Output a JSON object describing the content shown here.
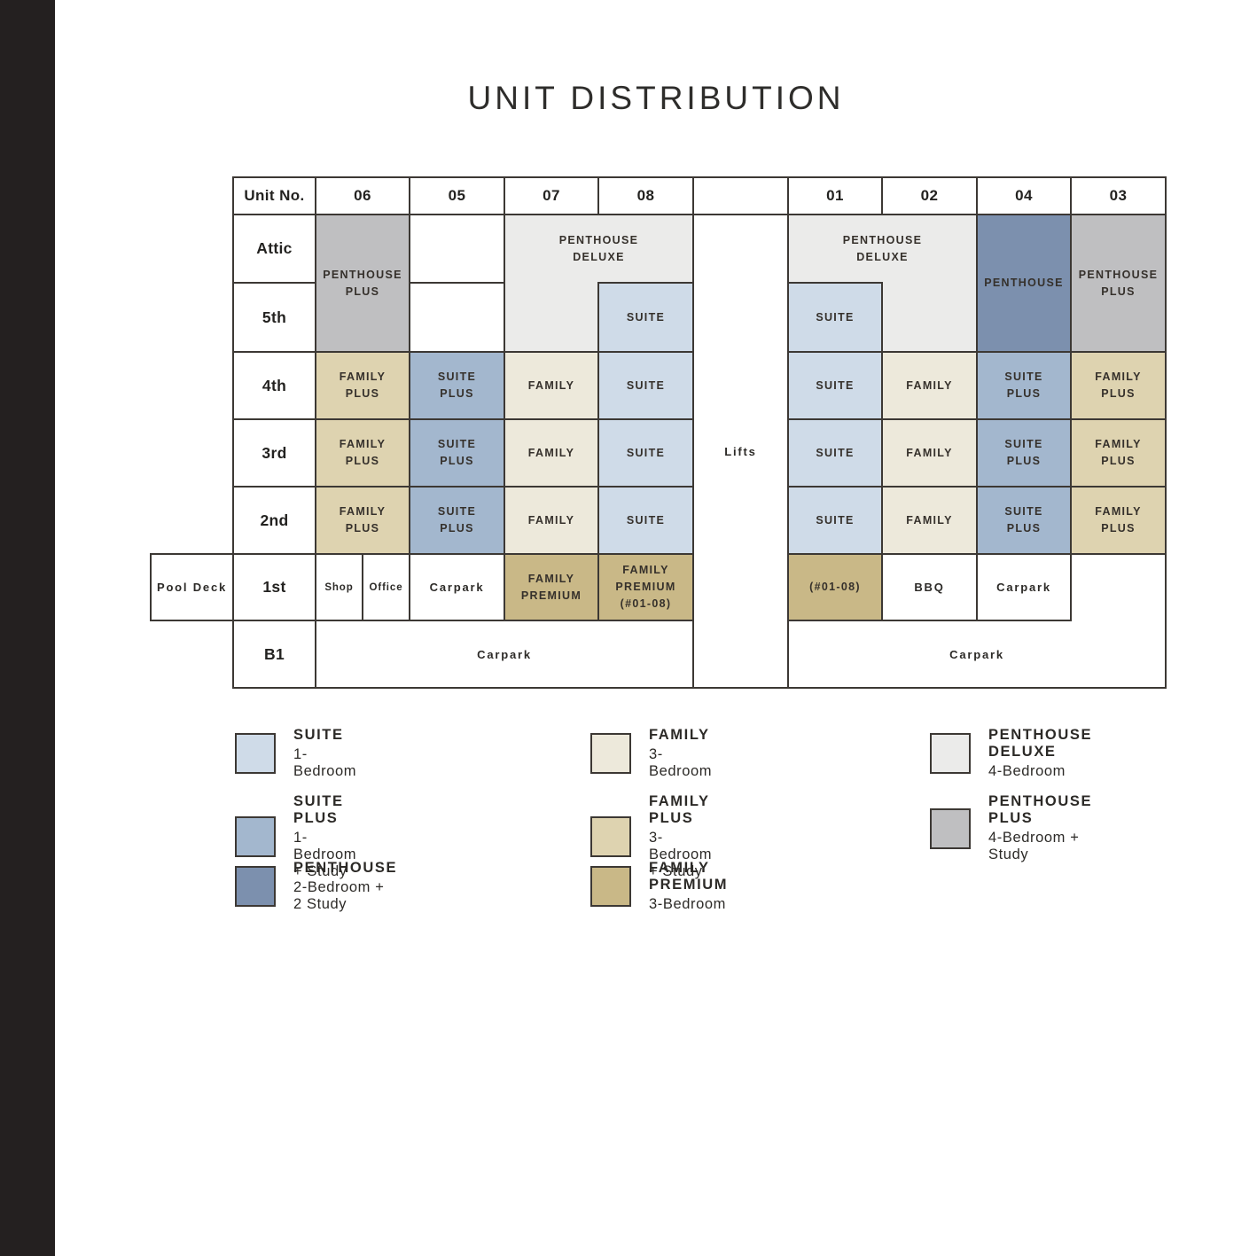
{
  "page": {
    "title": "UNIT DISTRIBUTION"
  },
  "colors": {
    "suite": "#cfdbe8",
    "suite_plus": "#a3b7ce",
    "penthouse": "#7c90ae",
    "family": "#ede9db",
    "family_plus": "#ded3b0",
    "family_premium": "#c9b887",
    "penthouse_deluxe": "#ebebea",
    "penthouse_plus": "#bfbfc1",
    "white": "#ffffff",
    "grid_line": "#3c3834",
    "spine": "#242020"
  },
  "table": {
    "cells": [
      {
        "name": "header-unit-no",
        "col": "label",
        "row": "header",
        "label": "Unit No.",
        "kind": "header"
      },
      {
        "name": "header-06",
        "col": "u06",
        "row": "header",
        "label": "06",
        "kind": "header"
      },
      {
        "name": "header-05",
        "col": "u05",
        "row": "header",
        "label": "05",
        "kind": "header"
      },
      {
        "name": "header-07",
        "col": "u07",
        "row": "header",
        "label": "07",
        "kind": "header"
      },
      {
        "name": "header-08",
        "col": "u08",
        "row": "header",
        "label": "08",
        "kind": "header"
      },
      {
        "name": "header-lifts-blank",
        "col": "lifts",
        "row": "header",
        "label": "",
        "kind": "header"
      },
      {
        "name": "header-01",
        "col": "u01",
        "row": "header",
        "label": "01",
        "kind": "header"
      },
      {
        "name": "header-02",
        "col": "u02",
        "row": "header",
        "label": "02",
        "kind": "header"
      },
      {
        "name": "header-04",
        "col": "u04",
        "row": "header",
        "label": "04",
        "kind": "header"
      },
      {
        "name": "header-03",
        "col": "u03",
        "row": "header",
        "label": "03",
        "kind": "header"
      },
      {
        "name": "floor-label-attic",
        "col": "label",
        "row": "attic",
        "label": "Attic",
        "kind": "floor"
      },
      {
        "name": "floor-label-5th",
        "col": "label",
        "row": "f5",
        "label": "5th",
        "kind": "floor"
      },
      {
        "name": "floor-label-4th",
        "col": "label",
        "row": "f4",
        "label": "4th",
        "kind": "floor"
      },
      {
        "name": "floor-label-3rd",
        "col": "label",
        "row": "f3",
        "label": "3rd",
        "kind": "floor"
      },
      {
        "name": "floor-label-2nd",
        "col": "label",
        "row": "f2",
        "label": "2nd",
        "kind": "floor"
      },
      {
        "name": "floor-label-1st",
        "col": "label",
        "row": "f1",
        "label": "1st",
        "kind": "floor"
      },
      {
        "name": "floor-label-b1",
        "col": "label",
        "row": "b1",
        "label": "B1",
        "kind": "floor"
      },
      {
        "name": "cell-06-penthouse-plus",
        "col": "u06",
        "row": "attic5",
        "label": [
          "PENTHOUSE",
          "PLUS"
        ],
        "color": "penthouse_plus",
        "kind": "unit"
      },
      {
        "name": "cell-05-attic-empty",
        "col": "u05",
        "row": "attic",
        "label": "",
        "color": "white"
      },
      {
        "name": "cell-0708-penthouse-deluxe",
        "col": "u0708",
        "row": "attic",
        "label": [
          "PENTHOUSE",
          "DELUXE"
        ],
        "color": "penthouse_deluxe",
        "kind": "unit"
      },
      {
        "name": "cell-07-penthouse-deluxe-5th",
        "col": "u07",
        "row": "f5",
        "label": "",
        "color": "penthouse_deluxe"
      },
      {
        "name": "cell-08-suite-5th",
        "col": "u08",
        "row": "f5",
        "label": "SUITE",
        "color": "suite",
        "kind": "unit"
      },
      {
        "name": "cell-0102-penthouse-deluxe",
        "col": "u0102",
        "row": "attic",
        "label": [
          "PENTHOUSE",
          "DELUXE"
        ],
        "color": "penthouse_deluxe",
        "kind": "unit"
      },
      {
        "name": "cell-01-suite-5th",
        "col": "u01",
        "row": "f5",
        "label": "SUITE",
        "color": "suite",
        "kind": "unit"
      },
      {
        "name": "cell-02-penthouse-deluxe-5th",
        "col": "u02",
        "row": "f5",
        "label": "",
        "color": "penthouse_deluxe"
      },
      {
        "name": "cell-04-penthouse",
        "col": "u04",
        "row": "attic5",
        "label": "PENTHOUSE",
        "color": "penthouse",
        "kind": "unit"
      },
      {
        "name": "cell-03-penthouse-plus",
        "col": "u03",
        "row": "attic5",
        "label": [
          "PENTHOUSE",
          "PLUS"
        ],
        "color": "penthouse_plus",
        "kind": "unit"
      },
      {
        "name": "cell-06-4th-family-plus",
        "col": "u06",
        "row": "f4",
        "label": [
          "FAMILY",
          "PLUS"
        ],
        "color": "family_plus",
        "kind": "unit"
      },
      {
        "name": "cell-05-4th-suite-plus",
        "col": "u05",
        "row": "f4",
        "label": [
          "SUITE",
          "PLUS"
        ],
        "color": "suite_plus",
        "kind": "unit"
      },
      {
        "name": "cell-07-4th-family",
        "col": "u07",
        "row": "f4",
        "label": "FAMILY",
        "color": "family",
        "kind": "unit"
      },
      {
        "name": "cell-08-4th-suite",
        "col": "u08",
        "row": "f4",
        "label": "SUITE",
        "color": "suite",
        "kind": "unit"
      },
      {
        "name": "cell-01-4th-suite",
        "col": "u01",
        "row": "f4",
        "label": "SUITE",
        "color": "suite",
        "kind": "unit"
      },
      {
        "name": "cell-02-4th-family",
        "col": "u02",
        "row": "f4",
        "label": "FAMILY",
        "color": "family",
        "kind": "unit"
      },
      {
        "name": "cell-04-4th-suite-plus",
        "col": "u04",
        "row": "f4",
        "label": [
          "SUITE",
          "PLUS"
        ],
        "color": "suite_plus",
        "kind": "unit"
      },
      {
        "name": "cell-03-4th-family-plus",
        "col": "u03",
        "row": "f4",
        "label": [
          "FAMILY",
          "PLUS"
        ],
        "color": "family_plus",
        "kind": "unit"
      },
      {
        "name": "cell-06-3rd-family-plus",
        "col": "u06",
        "row": "f3",
        "label": [
          "FAMILY",
          "PLUS"
        ],
        "color": "family_plus",
        "kind": "unit"
      },
      {
        "name": "cell-05-3rd-suite-plus",
        "col": "u05",
        "row": "f3",
        "label": [
          "SUITE",
          "PLUS"
        ],
        "color": "suite_plus",
        "kind": "unit"
      },
      {
        "name": "cell-07-3rd-family",
        "col": "u07",
        "row": "f3",
        "label": "FAMILY",
        "color": "family",
        "kind": "unit"
      },
      {
        "name": "cell-08-3rd-suite",
        "col": "u08",
        "row": "f3",
        "label": "SUITE",
        "color": "suite",
        "kind": "unit"
      },
      {
        "name": "cell-01-3rd-suite",
        "col": "u01",
        "row": "f3",
        "label": "SUITE",
        "color": "suite",
        "kind": "unit"
      },
      {
        "name": "cell-02-3rd-family",
        "col": "u02",
        "row": "f3",
        "label": "FAMILY",
        "color": "family",
        "kind": "unit"
      },
      {
        "name": "cell-04-3rd-suite-plus",
        "col": "u04",
        "row": "f3",
        "label": [
          "SUITE",
          "PLUS"
        ],
        "color": "suite_plus",
        "kind": "unit"
      },
      {
        "name": "cell-03-3rd-family-plus",
        "col": "u03",
        "row": "f3",
        "label": [
          "FAMILY",
          "PLUS"
        ],
        "color": "family_plus",
        "kind": "unit"
      },
      {
        "name": "cell-06-2nd-family-plus",
        "col": "u06",
        "row": "f2",
        "label": [
          "FAMILY",
          "PLUS"
        ],
        "color": "family_plus",
        "kind": "unit"
      },
      {
        "name": "cell-05-2nd-suite-plus",
        "col": "u05",
        "row": "f2",
        "label": [
          "SUITE",
          "PLUS"
        ],
        "color": "suite_plus",
        "kind": "unit"
      },
      {
        "name": "cell-07-2nd-family",
        "col": "u07",
        "row": "f2",
        "label": "FAMILY",
        "color": "family",
        "kind": "unit"
      },
      {
        "name": "cell-08-2nd-suite",
        "col": "u08",
        "row": "f2",
        "label": "SUITE",
        "color": "suite",
        "kind": "unit"
      },
      {
        "name": "cell-01-2nd-suite",
        "col": "u01",
        "row": "f2",
        "label": "SUITE",
        "color": "suite",
        "kind": "unit"
      },
      {
        "name": "cell-02-2nd-family",
        "col": "u02",
        "row": "f2",
        "label": "FAMILY",
        "color": "family",
        "kind": "unit"
      },
      {
        "name": "cell-04-2nd-suite-plus",
        "col": "u04",
        "row": "f2",
        "label": [
          "SUITE",
          "PLUS"
        ],
        "color": "suite_plus",
        "kind": "unit"
      },
      {
        "name": "cell-03-2nd-family-plus",
        "col": "u03",
        "row": "f2",
        "label": [
          "FAMILY",
          "PLUS"
        ],
        "color": "family_plus",
        "kind": "unit"
      },
      {
        "name": "cell-pool-deck",
        "col": "pool",
        "row": "f1",
        "label": "Pool Deck",
        "color": "white",
        "kind": "facility"
      },
      {
        "name": "cell-shop",
        "col": "shop",
        "row": "f1",
        "label": "Shop",
        "color": "white",
        "kind": "small"
      },
      {
        "name": "cell-office",
        "col": "office",
        "row": "f1",
        "label": "Office",
        "color": "white",
        "kind": "small"
      },
      {
        "name": "cell-carpark-1st-left",
        "col": "u05",
        "row": "f1",
        "label": "Carpark",
        "color": "white",
        "kind": "facility"
      },
      {
        "name": "cell-07-family-premium",
        "col": "u07",
        "row": "f1",
        "label": [
          "FAMILY",
          "PREMIUM"
        ],
        "color": "family_premium",
        "kind": "unit"
      },
      {
        "name": "cell-08-family-premium",
        "col": "u08",
        "row": "f1",
        "label": [
          "FAMILY",
          "PREMIUM",
          "(#01-08)"
        ],
        "color": "family_premium",
        "kind": "unit"
      },
      {
        "name": "cell-01-family-premium",
        "col": "u01",
        "row": "f1",
        "label": "(#01-08)",
        "color": "family_premium",
        "kind": "unit"
      },
      {
        "name": "cell-bbq",
        "col": "u02",
        "row": "f1",
        "label": "BBQ",
        "color": "white",
        "kind": "facility"
      },
      {
        "name": "cell-carpark-1st-right",
        "col": "u04",
        "row": "f1",
        "label": "Carpark",
        "color": "white",
        "kind": "facility"
      },
      {
        "name": "cell-03-1st-empty",
        "col": "u03",
        "row": "f1",
        "label": "",
        "color": "white"
      },
      {
        "name": "cell-b1-carpark-left",
        "col": "b1L",
        "row": "b1",
        "label": "Carpark",
        "color": "white",
        "kind": "facility"
      },
      {
        "name": "cell-b1-carpark-right",
        "col": "b1R",
        "row": "b1",
        "label": "Carpark",
        "color": "white",
        "kind": "facility"
      },
      {
        "name": "cell-lifts",
        "col": "lifts",
        "row": "full",
        "label": "Lifts",
        "color": "white",
        "kind": "facility"
      },
      {
        "name": "patch-penthouse-deluxe-left",
        "col": "u07",
        "row": "f5",
        "color": "penthouse_deluxe",
        "patch": true
      },
      {
        "name": "patch-penthouse-deluxe-right",
        "col": "u02",
        "row": "f5",
        "color": "penthouse_deluxe",
        "patch": true
      },
      {
        "name": "patch-b1-right-merge",
        "col": "u03",
        "row": "b1",
        "color": "white",
        "patch": true
      }
    ]
  },
  "legend": {
    "columns": [
      {
        "items": [
          {
            "name": "SUITE",
            "desc": "1-Bedroom",
            "color": "suite"
          },
          {
            "name": "SUITE PLUS",
            "desc": "1-Bedroom + Study",
            "color": "suite_plus"
          },
          {
            "name": "PENTHOUSE",
            "desc": "2-Bedroom + 2 Study",
            "color": "penthouse"
          }
        ]
      },
      {
        "items": [
          {
            "name": "FAMILY",
            "desc": "3-Bedroom",
            "color": "family"
          },
          {
            "name": "FAMILY PLUS",
            "desc": "3-Bedroom + Study",
            "color": "family_plus"
          },
          {
            "name": "FAMILY PREMIUM",
            "desc": "3-Bedroom",
            "color": "family_premium"
          }
        ]
      },
      {
        "items": [
          {
            "name": "PENTHOUSE DELUXE",
            "desc": "4-Bedroom",
            "color": "penthouse_deluxe"
          },
          {
            "name": "PENTHOUSE PLUS",
            "desc": "4-Bedroom + Study",
            "color": "penthouse_plus"
          }
        ]
      }
    ]
  }
}
